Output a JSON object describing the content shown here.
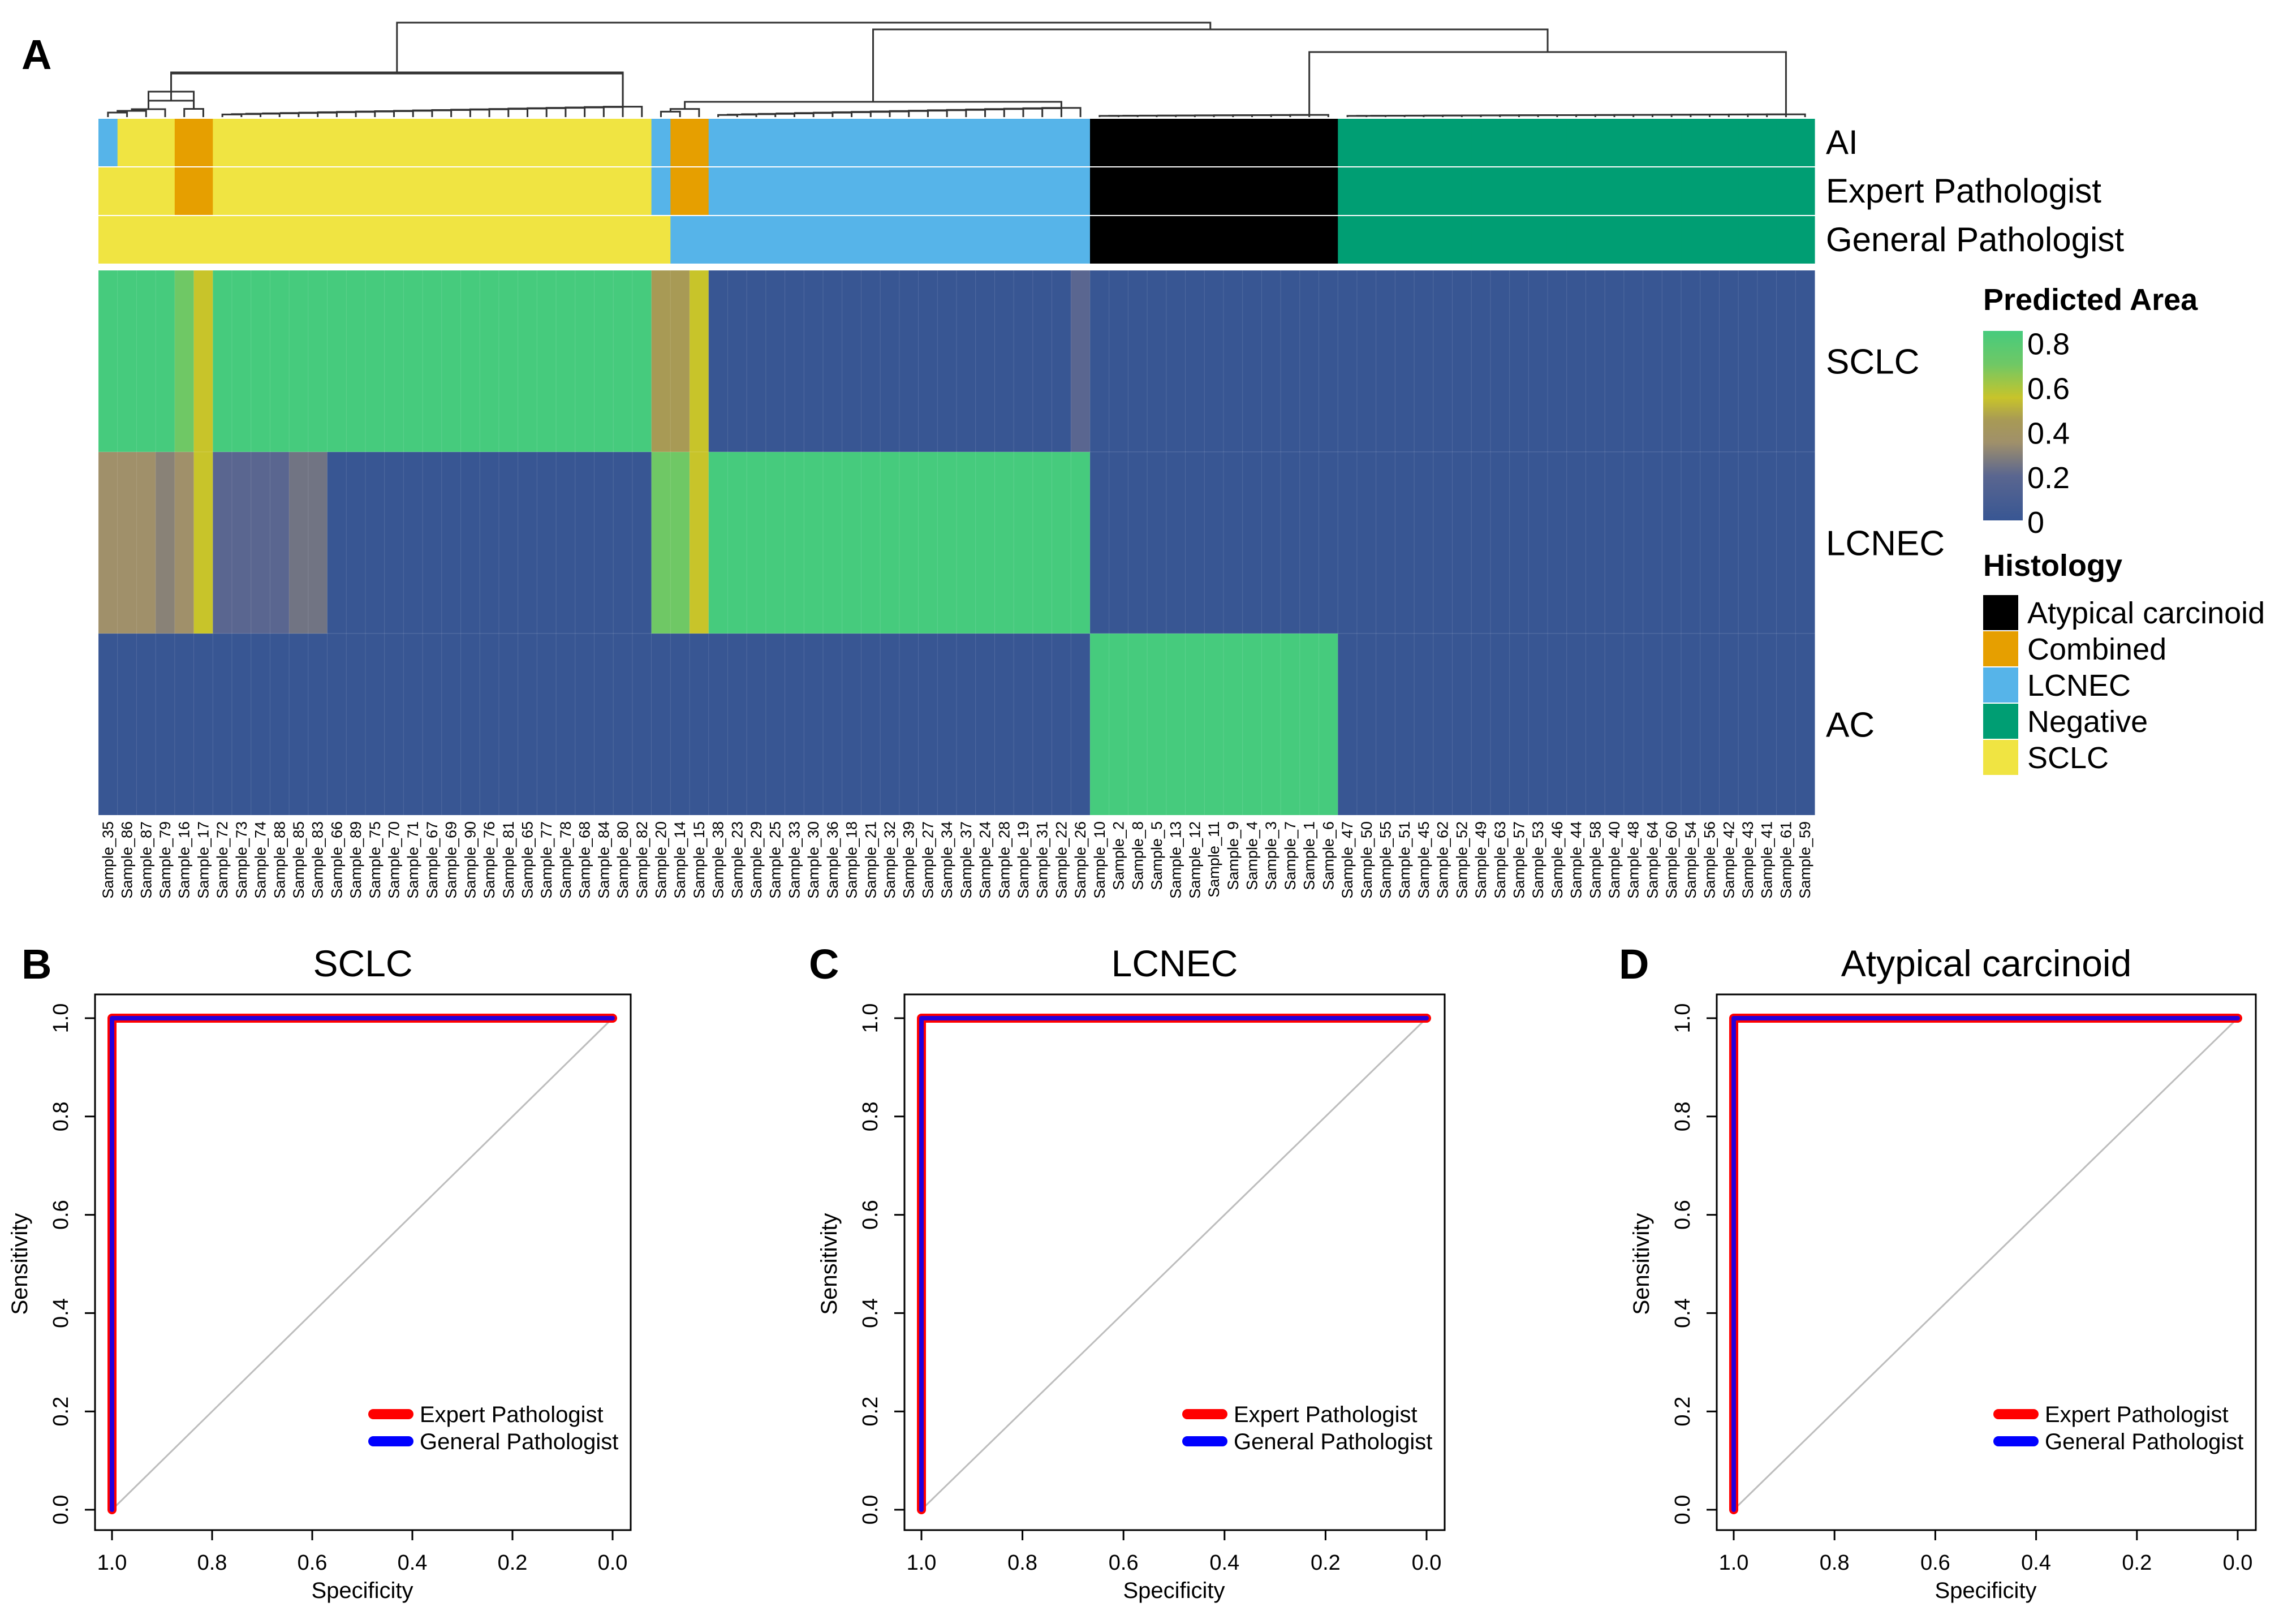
{
  "panel_letters": [
    "A",
    "B",
    "C",
    "D"
  ],
  "chart_data": [
    {
      "type": "heatmap",
      "panel": "A",
      "samples": [
        "Sample_35",
        "Sample_86",
        "Sample_87",
        "Sample_79",
        "Sample_16",
        "Sample_17",
        "Sample_72",
        "Sample_73",
        "Sample_74",
        "Sample_88",
        "Sample_85",
        "Sample_83",
        "Sample_66",
        "Sample_89",
        "Sample_75",
        "Sample_70",
        "Sample_71",
        "Sample_67",
        "Sample_69",
        "Sample_90",
        "Sample_76",
        "Sample_81",
        "Sample_65",
        "Sample_77",
        "Sample_78",
        "Sample_68",
        "Sample_84",
        "Sample_80",
        "Sample_82",
        "Sample_20",
        "Sample_14",
        "Sample_15",
        "Sample_38",
        "Sample_23",
        "Sample_29",
        "Sample_25",
        "Sample_33",
        "Sample_30",
        "Sample_36",
        "Sample_18",
        "Sample_21",
        "Sample_32",
        "Sample_39",
        "Sample_27",
        "Sample_34",
        "Sample_37",
        "Sample_24",
        "Sample_28",
        "Sample_19",
        "Sample_31",
        "Sample_22",
        "Sample_26",
        "Sample_10",
        "Sample_2",
        "Sample_8",
        "Sample_5",
        "Sample_13",
        "Sample_12",
        "Sample_11",
        "Sample_9",
        "Sample_4",
        "Sample_3",
        "Sample_7",
        "Sample_1",
        "Sample_6",
        "Sample_47",
        "Sample_50",
        "Sample_55",
        "Sample_51",
        "Sample_45",
        "Sample_62",
        "Sample_52",
        "Sample_49",
        "Sample_63",
        "Sample_57",
        "Sample_53",
        "Sample_46",
        "Sample_44",
        "Sample_58",
        "Sample_40",
        "Sample_48",
        "Sample_64",
        "Sample_60",
        "Sample_54",
        "Sample_56",
        "Sample_42",
        "Sample_43",
        "Sample_41",
        "Sample_61",
        "Sample_59"
      ],
      "annotation_rows": [
        {
          "name": "AI",
          "values": [
            "LCNEC",
            "SCLC",
            "SCLC",
            "SCLC",
            "Combined",
            "Combined",
            "SCLC",
            "SCLC",
            "SCLC",
            "SCLC",
            "SCLC",
            "SCLC",
            "SCLC",
            "SCLC",
            "SCLC",
            "SCLC",
            "SCLC",
            "SCLC",
            "SCLC",
            "SCLC",
            "SCLC",
            "SCLC",
            "SCLC",
            "SCLC",
            "SCLC",
            "SCLC",
            "SCLC",
            "SCLC",
            "SCLC",
            "LCNEC",
            "Combined",
            "Combined",
            "LCNEC",
            "LCNEC",
            "LCNEC",
            "LCNEC",
            "LCNEC",
            "LCNEC",
            "LCNEC",
            "LCNEC",
            "LCNEC",
            "LCNEC",
            "LCNEC",
            "LCNEC",
            "LCNEC",
            "LCNEC",
            "LCNEC",
            "LCNEC",
            "LCNEC",
            "LCNEC",
            "LCNEC",
            "LCNEC",
            "Atypical carcinoid",
            "Atypical carcinoid",
            "Atypical carcinoid",
            "Atypical carcinoid",
            "Atypical carcinoid",
            "Atypical carcinoid",
            "Atypical carcinoid",
            "Atypical carcinoid",
            "Atypical carcinoid",
            "Atypical carcinoid",
            "Atypical carcinoid",
            "Atypical carcinoid",
            "Atypical carcinoid",
            "Negative",
            "Negative",
            "Negative",
            "Negative",
            "Negative",
            "Negative",
            "Negative",
            "Negative",
            "Negative",
            "Negative",
            "Negative",
            "Negative",
            "Negative",
            "Negative",
            "Negative",
            "Negative",
            "Negative",
            "Negative",
            "Negative",
            "Negative",
            "Negative",
            "Negative",
            "Negative",
            "Negative",
            "Negative"
          ]
        },
        {
          "name": "Expert Pathologist",
          "values": [
            "SCLC",
            "SCLC",
            "SCLC",
            "SCLC",
            "Combined",
            "Combined",
            "SCLC",
            "SCLC",
            "SCLC",
            "SCLC",
            "SCLC",
            "SCLC",
            "SCLC",
            "SCLC",
            "SCLC",
            "SCLC",
            "SCLC",
            "SCLC",
            "SCLC",
            "SCLC",
            "SCLC",
            "SCLC",
            "SCLC",
            "SCLC",
            "SCLC",
            "SCLC",
            "SCLC",
            "SCLC",
            "SCLC",
            "LCNEC",
            "Combined",
            "Combined",
            "LCNEC",
            "LCNEC",
            "LCNEC",
            "LCNEC",
            "LCNEC",
            "LCNEC",
            "LCNEC",
            "LCNEC",
            "LCNEC",
            "LCNEC",
            "LCNEC",
            "LCNEC",
            "LCNEC",
            "LCNEC",
            "LCNEC",
            "LCNEC",
            "LCNEC",
            "LCNEC",
            "LCNEC",
            "LCNEC",
            "Atypical carcinoid",
            "Atypical carcinoid",
            "Atypical carcinoid",
            "Atypical carcinoid",
            "Atypical carcinoid",
            "Atypical carcinoid",
            "Atypical carcinoid",
            "Atypical carcinoid",
            "Atypical carcinoid",
            "Atypical carcinoid",
            "Atypical carcinoid",
            "Atypical carcinoid",
            "Atypical carcinoid",
            "Negative",
            "Negative",
            "Negative",
            "Negative",
            "Negative",
            "Negative",
            "Negative",
            "Negative",
            "Negative",
            "Negative",
            "Negative",
            "Negative",
            "Negative",
            "Negative",
            "Negative",
            "Negative",
            "Negative",
            "Negative",
            "Negative",
            "Negative",
            "Negative",
            "Negative",
            "Negative",
            "Negative",
            "Negative"
          ]
        },
        {
          "name": "General Pathologist",
          "values": [
            "SCLC",
            "SCLC",
            "SCLC",
            "SCLC",
            "SCLC",
            "SCLC",
            "SCLC",
            "SCLC",
            "SCLC",
            "SCLC",
            "SCLC",
            "SCLC",
            "SCLC",
            "SCLC",
            "SCLC",
            "SCLC",
            "SCLC",
            "SCLC",
            "SCLC",
            "SCLC",
            "SCLC",
            "SCLC",
            "SCLC",
            "SCLC",
            "SCLC",
            "SCLC",
            "SCLC",
            "SCLC",
            "SCLC",
            "SCLC",
            "LCNEC",
            "LCNEC",
            "LCNEC",
            "LCNEC",
            "LCNEC",
            "LCNEC",
            "LCNEC",
            "LCNEC",
            "LCNEC",
            "LCNEC",
            "LCNEC",
            "LCNEC",
            "LCNEC",
            "LCNEC",
            "LCNEC",
            "LCNEC",
            "LCNEC",
            "LCNEC",
            "LCNEC",
            "LCNEC",
            "LCNEC",
            "LCNEC",
            "Atypical carcinoid",
            "Atypical carcinoid",
            "Atypical carcinoid",
            "Atypical carcinoid",
            "Atypical carcinoid",
            "Atypical carcinoid",
            "Atypical carcinoid",
            "Atypical carcinoid",
            "Atypical carcinoid",
            "Atypical carcinoid",
            "Atypical carcinoid",
            "Atypical carcinoid",
            "Atypical carcinoid",
            "Negative",
            "Negative",
            "Negative",
            "Negative",
            "Negative",
            "Negative",
            "Negative",
            "Negative",
            "Negative",
            "Negative",
            "Negative",
            "Negative",
            "Negative",
            "Negative",
            "Negative",
            "Negative",
            "Negative",
            "Negative",
            "Negative",
            "Negative",
            "Negative",
            "Negative",
            "Negative",
            "Negative",
            "Negative"
          ]
        }
      ],
      "heat_rows": [
        {
          "name": "SCLC",
          "values": [
            0.85,
            0.85,
            0.85,
            0.85,
            0.7,
            0.55,
            0.85,
            0.85,
            0.85,
            0.85,
            0.85,
            0.85,
            0.85,
            0.85,
            0.85,
            0.85,
            0.85,
            0.85,
            0.85,
            0.85,
            0.85,
            0.85,
            0.85,
            0.85,
            0.85,
            0.85,
            0.85,
            0.85,
            0.85,
            0.45,
            0.45,
            0.55,
            0,
            0,
            0,
            0,
            0,
            0,
            0,
            0,
            0,
            0,
            0,
            0,
            0,
            0,
            0,
            0,
            0,
            0,
            0,
            0.2,
            0,
            0,
            0,
            0,
            0,
            0,
            0,
            0,
            0,
            0,
            0,
            0,
            0,
            0,
            0,
            0,
            0,
            0,
            0,
            0,
            0,
            0,
            0,
            0,
            0,
            0,
            0,
            0,
            0,
            0,
            0,
            0,
            0,
            0,
            0,
            0,
            0,
            0
          ]
        },
        {
          "name": "LCNEC",
          "values": [
            0.35,
            0.35,
            0.35,
            0.3,
            0.35,
            0.55,
            0.2,
            0.2,
            0.2,
            0.2,
            0.25,
            0.25,
            0,
            0,
            0,
            0,
            0,
            0,
            0,
            0,
            0,
            0,
            0,
            0,
            0,
            0,
            0,
            0,
            0,
            0.7,
            0.7,
            0.55,
            0.85,
            0.85,
            0.85,
            0.85,
            0.85,
            0.85,
            0.85,
            0.85,
            0.85,
            0.85,
            0.85,
            0.85,
            0.85,
            0.85,
            0.85,
            0.85,
            0.85,
            0.85,
            0.85,
            0.85,
            0,
            0,
            0,
            0,
            0,
            0,
            0,
            0,
            0,
            0,
            0,
            0,
            0,
            0,
            0,
            0,
            0,
            0,
            0,
            0,
            0,
            0,
            0,
            0,
            0,
            0,
            0,
            0,
            0,
            0,
            0,
            0,
            0,
            0,
            0,
            0,
            0,
            0
          ]
        },
        {
          "name": "AC",
          "values": [
            0,
            0,
            0,
            0,
            0,
            0,
            0,
            0,
            0,
            0,
            0,
            0,
            0,
            0,
            0,
            0,
            0,
            0,
            0,
            0,
            0,
            0,
            0,
            0,
            0,
            0,
            0,
            0,
            0,
            0,
            0,
            0,
            0,
            0,
            0,
            0,
            0,
            0,
            0,
            0,
            0,
            0,
            0,
            0,
            0,
            0,
            0,
            0,
            0,
            0,
            0,
            0,
            0.85,
            0.85,
            0.85,
            0.85,
            0.85,
            0.85,
            0.85,
            0.85,
            0.85,
            0.85,
            0.85,
            0.85,
            0.85,
            0,
            0,
            0,
            0,
            0,
            0,
            0,
            0,
            0,
            0,
            0,
            0,
            0,
            0,
            0,
            0,
            0,
            0,
            0,
            0,
            0,
            0,
            0,
            0,
            0
          ]
        }
      ],
      "color_scale": {
        "title": "Predicted Area",
        "ticks": [
          "0.8",
          "0.6",
          "0.4",
          "0.2",
          "0"
        ],
        "tick_values": [
          0.8,
          0.6,
          0.4,
          0.2,
          0
        ],
        "stops": [
          {
            "v": 0,
            "color": "#385693"
          },
          {
            "v": 0.2,
            "color": "#5a6690"
          },
          {
            "v": 0.35,
            "color": "#a0906a"
          },
          {
            "v": 0.45,
            "color": "#a89a55"
          },
          {
            "v": 0.55,
            "color": "#c8c42a"
          },
          {
            "v": 0.7,
            "color": "#6fc865"
          },
          {
            "v": 0.85,
            "color": "#46cb7d"
          }
        ]
      },
      "histology_legend": {
        "title": "Histology",
        "items": [
          {
            "label": "Atypical carcinoid",
            "color": "#000000"
          },
          {
            "label": "Combined",
            "color": "#e69f00"
          },
          {
            "label": "LCNEC",
            "color": "#56b4e9"
          },
          {
            "label": "Negative",
            "color": "#009e73"
          },
          {
            "label": "SCLC",
            "color": "#f0e442"
          }
        ]
      }
    },
    {
      "type": "line",
      "panel": "B",
      "title": "SCLC",
      "xlabel": "Specificity",
      "ylabel": "Sensitivity",
      "xlim": [
        1.0,
        0.0
      ],
      "ylim": [
        0.0,
        1.0
      ],
      "xticks": [
        "1.0",
        "0.8",
        "0.6",
        "0.4",
        "0.2",
        "0.0"
      ],
      "yticks": [
        "0.0",
        "0.2",
        "0.4",
        "0.6",
        "0.8",
        "1.0"
      ],
      "series": [
        {
          "name": "Expert Pathologist",
          "color": "#ff0000",
          "x": [
            1.0,
            1.0,
            0.0
          ],
          "y": [
            0.0,
            1.0,
            1.0
          ]
        },
        {
          "name": "General Pathologist",
          "color": "#0000ff",
          "x": [
            1.0,
            1.0,
            0.0
          ],
          "y": [
            0.0,
            1.0,
            1.0
          ]
        }
      ]
    },
    {
      "type": "line",
      "panel": "C",
      "title": "LCNEC",
      "xlabel": "Specificity",
      "ylabel": "Sensitivity",
      "xlim": [
        1.0,
        0.0
      ],
      "ylim": [
        0.0,
        1.0
      ],
      "xticks": [
        "1.0",
        "0.8",
        "0.6",
        "0.4",
        "0.2",
        "0.0"
      ],
      "yticks": [
        "0.0",
        "0.2",
        "0.4",
        "0.6",
        "0.8",
        "1.0"
      ],
      "series": [
        {
          "name": "Expert Pathologist",
          "color": "#ff0000",
          "x": [
            1.0,
            1.0,
            0.0
          ],
          "y": [
            0.0,
            1.0,
            1.0
          ]
        },
        {
          "name": "General Pathologist",
          "color": "#0000ff",
          "x": [
            1.0,
            1.0,
            0.0
          ],
          "y": [
            0.0,
            1.0,
            1.0
          ]
        }
      ]
    },
    {
      "type": "line",
      "panel": "D",
      "title": "Atypical carcinoid",
      "xlabel": "Specificity",
      "ylabel": "Sensitivity",
      "xlim": [
        1.0,
        0.0
      ],
      "ylim": [
        0.0,
        1.0
      ],
      "xticks": [
        "1.0",
        "0.8",
        "0.6",
        "0.4",
        "0.2",
        "0.0"
      ],
      "yticks": [
        "0.0",
        "0.2",
        "0.4",
        "0.6",
        "0.8",
        "1.0"
      ],
      "series": [
        {
          "name": "Expert Pathologist",
          "color": "#ff0000",
          "x": [
            1.0,
            1.0,
            0.0
          ],
          "y": [
            0.0,
            1.0,
            1.0
          ]
        },
        {
          "name": "General Pathologist",
          "color": "#0000ff",
          "x": [
            1.0,
            1.0,
            0.0
          ],
          "y": [
            0.0,
            1.0,
            1.0
          ]
        }
      ]
    }
  ]
}
